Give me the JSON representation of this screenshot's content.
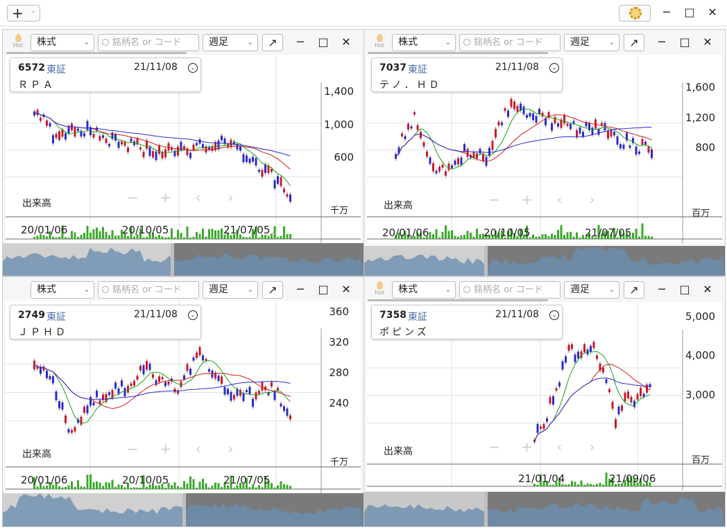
{
  "toolbar": {
    "add": "+",
    "gear": "gear-icon",
    "minimize": "─",
    "maximize": "□",
    "close": "✕"
  },
  "common": {
    "market_type": "株式",
    "search_placeholder": "銘柄名 or コード",
    "period": "週足",
    "hot": "Hot",
    "external": "↗",
    "minimize": "─",
    "maximize": "□",
    "close": "✕",
    "volume_label": "出来高",
    "controls": [
      "−",
      "+",
      "‹",
      "›"
    ]
  },
  "panels": [
    {
      "code": "6572",
      "market": "東証",
      "date": "21/11/08",
      "name": "ＲＰＡ",
      "y_ticks": [
        "1,400",
        "1,000",
        "600"
      ],
      "x_ticks": [
        "20/01/06",
        "20/10/05",
        "21/07/05"
      ],
      "volume_unit": "千万"
    },
    {
      "code": "7037",
      "market": "東証",
      "date": "21/11/08",
      "name": "テノ．ＨＤ",
      "y_ticks": [
        "1,600",
        "1,200",
        "800"
      ],
      "x_ticks": [
        "20/01/06",
        "20/10/05",
        "21/07/05"
      ],
      "volume_unit": "百万"
    },
    {
      "code": "2749",
      "market": "東証",
      "date": "21/11/08",
      "name": "ＪＰＨＤ",
      "y_ticks": [
        "360",
        "320",
        "280",
        "240"
      ],
      "x_ticks": [
        "20/01/06",
        "20/10/05",
        "21/07/05"
      ],
      "volume_unit": "千万"
    },
    {
      "code": "7358",
      "market": "東証",
      "date": "21/11/08",
      "name": "ポピンズ",
      "y_ticks": [
        "5,000",
        "4,000",
        "3,000"
      ],
      "x_ticks": [
        "21/01/04",
        "21/09/06"
      ],
      "volume_unit": "百万"
    }
  ],
  "colors": {
    "up": "#d0162a",
    "down": "#2a2acf",
    "ma_red": "#d21a1a",
    "ma_green": "#18a018",
    "ma_blue": "#2b2bcf",
    "volume": "#3aaa2a"
  }
}
